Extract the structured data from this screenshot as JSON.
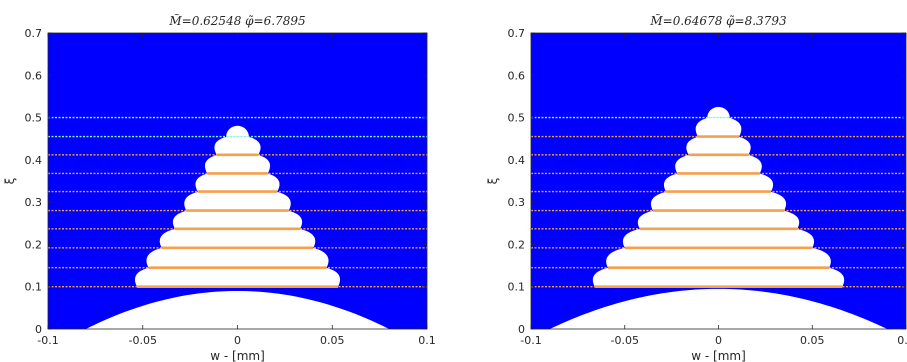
{
  "chart_data": [
    {
      "type": "line",
      "title": "M̃=0.62548 φ̃=6.7895",
      "xlabel": "w - [mm]",
      "ylabel": "ξ",
      "xlim": [
        -0.1,
        0.1
      ],
      "ylim": [
        0,
        0.7
      ],
      "xticks": [
        "-0.1",
        "-0.05",
        "0",
        "0.05",
        "0.1"
      ],
      "yticks": [
        "0",
        "0.1",
        "0.2",
        "0.3",
        "0.4",
        "0.5",
        "0.6",
        "0.7"
      ],
      "background_color": "#0000ff",
      "region_color": "#ffffff",
      "outer_boundary": [
        [
          -0.08,
          0.0
        ],
        [
          -0.06,
          0.05
        ],
        [
          -0.03,
          0.08
        ],
        [
          0.0,
          0.09
        ],
        [
          0.03,
          0.08
        ],
        [
          0.06,
          0.05
        ],
        [
          0.08,
          0.0
        ]
      ],
      "scallop_levels": [
        0.1,
        0.145,
        0.192,
        0.237,
        0.28,
        0.325,
        0.368,
        0.412,
        0.455
      ],
      "scallop_half_widths": [
        0.053,
        0.047,
        0.04,
        0.033,
        0.027,
        0.021,
        0.016,
        0.011,
        0.006
      ],
      "top_cap": 0.455,
      "series": [
        {
          "name": "",
          "color": "#f6a04d",
          "levels": [
            0.1,
            0.145,
            0.192,
            0.237,
            0.28,
            0.325,
            0.368,
            0.412
          ]
        },
        {
          "name": "",
          "color": "#7fffd4",
          "levels": [
            0.455,
            0.5
          ]
        }
      ]
    },
    {
      "type": "line",
      "title": "M̃=0.64678 φ̃=8.3793",
      "xlabel": "w - [mm]",
      "ylabel": "ξ",
      "xlim": [
        -0.1,
        0.1
      ],
      "ylim": [
        0,
        0.7
      ],
      "xticks": [
        "-0.1",
        "-0.05",
        "0",
        "0.05",
        "0.1"
      ],
      "yticks": [
        "0",
        "0.1",
        "0.2",
        "0.3",
        "0.4",
        "0.5",
        "0.6",
        "0.7"
      ],
      "background_color": "#0000ff",
      "region_color": "#ffffff",
      "outer_boundary": [
        [
          -0.09,
          0.0
        ],
        [
          -0.07,
          0.05
        ],
        [
          -0.035,
          0.085
        ],
        [
          0.0,
          0.095
        ],
        [
          0.035,
          0.085
        ],
        [
          0.07,
          0.05
        ],
        [
          0.09,
          0.0
        ]
      ],
      "scallop_levels": [
        0.1,
        0.145,
        0.192,
        0.237,
        0.28,
        0.325,
        0.368,
        0.412,
        0.455,
        0.5
      ],
      "scallop_half_widths": [
        0.066,
        0.059,
        0.05,
        0.042,
        0.035,
        0.028,
        0.022,
        0.016,
        0.011,
        0.006
      ],
      "top_cap": 0.5,
      "series": [
        {
          "name": "",
          "color": "#f6a04d",
          "levels": [
            0.1,
            0.145,
            0.192,
            0.237,
            0.28,
            0.325,
            0.368,
            0.412,
            0.455
          ]
        },
        {
          "name": "",
          "color": "#7fffd4",
          "levels": [
            0.5
          ]
        }
      ]
    }
  ]
}
